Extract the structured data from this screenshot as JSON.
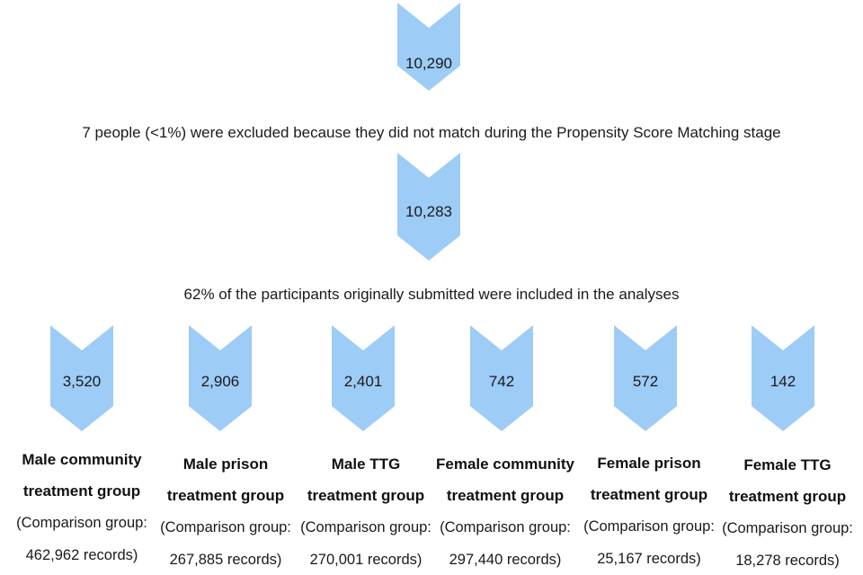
{
  "flow": {
    "top_steps": [
      {
        "value": "10,290"
      },
      {
        "value": "10,283"
      }
    ],
    "notes": [
      "7 people (<1%) were excluded because they did not match during the Propensity Score Matching stage",
      "62% of the participants originally submitted were included in the analyses"
    ],
    "groups": [
      {
        "value": "3,520",
        "name_line1": "Male community",
        "name_line2": "treatment group",
        "comp_line1": "(Comparison group:",
        "comp_line2": "462,962 records)"
      },
      {
        "value": "2,906",
        "name_line1": "Male prison",
        "name_line2": "treatment group",
        "comp_line1": "(Comparison group:",
        "comp_line2": "267,885 records)"
      },
      {
        "value": "2,401",
        "name_line1": "Male TTG",
        "name_line2": "treatment group",
        "comp_line1": "(Comparison group:",
        "comp_line2": "270,001 records)"
      },
      {
        "value": "742",
        "name_line1": "Female community",
        "name_line2": "treatment group",
        "comp_line1": "(Comparison group:",
        "comp_line2": "297,440 records)"
      },
      {
        "value": "572",
        "name_line1": "Female prison",
        "name_line2": "treatment group",
        "comp_line1": "(Comparison group:",
        "comp_line2": "25,167 records)"
      },
      {
        "value": "142",
        "name_line1": "Female TTG",
        "name_line2": "treatment group",
        "comp_line1": "(Comparison group:",
        "comp_line2": "18,278 records)"
      }
    ],
    "colors": {
      "chevron": "#9DCCF6",
      "text": "#111111"
    }
  }
}
